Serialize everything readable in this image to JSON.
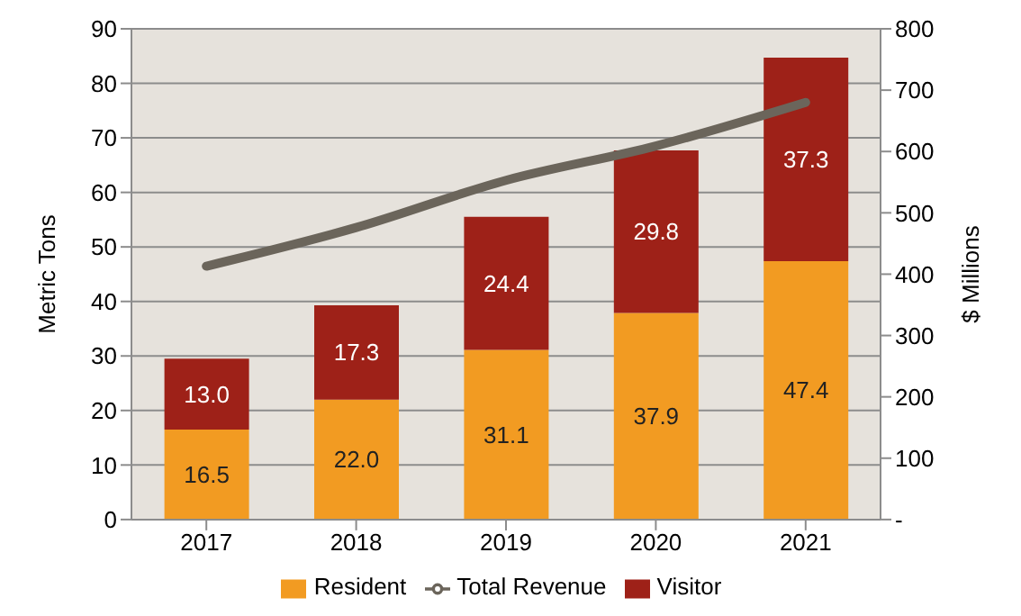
{
  "chart_data": {
    "type": "bar",
    "stacked": true,
    "categories": [
      "2017",
      "2018",
      "2019",
      "2020",
      "2021"
    ],
    "series": [
      {
        "name": "Resident",
        "color": "#f29b22",
        "values": [
          16.5,
          22.0,
          31.1,
          37.9,
          47.4
        ],
        "value_labels": [
          "16.5",
          "22.0",
          "31.1",
          "37.9",
          "47.4"
        ]
      },
      {
        "name": "Visitor",
        "color": "#9e2118",
        "values": [
          13.0,
          17.3,
          24.4,
          29.8,
          37.3
        ],
        "value_labels": [
          "13.0",
          "17.3",
          "24.4",
          "29.8",
          "37.3"
        ]
      },
      {
        "name": "Total Revenue",
        "type": "line",
        "axis": "y2",
        "color": "#6b655b",
        "values": [
          413,
          476,
          553,
          609,
          680
        ]
      }
    ],
    "ylabel": "Metric Tons",
    "y2label": "$ Millions",
    "ylim": [
      0,
      90
    ],
    "yticks": [
      0,
      10,
      20,
      30,
      40,
      50,
      60,
      70,
      80,
      90
    ],
    "y2lim": [
      0,
      800
    ],
    "y2ticks": [
      {
        "value": 0,
        "label": "-"
      },
      100,
      200,
      300,
      400,
      500,
      600,
      700,
      800
    ],
    "grid": "y",
    "legend": "bottom"
  }
}
